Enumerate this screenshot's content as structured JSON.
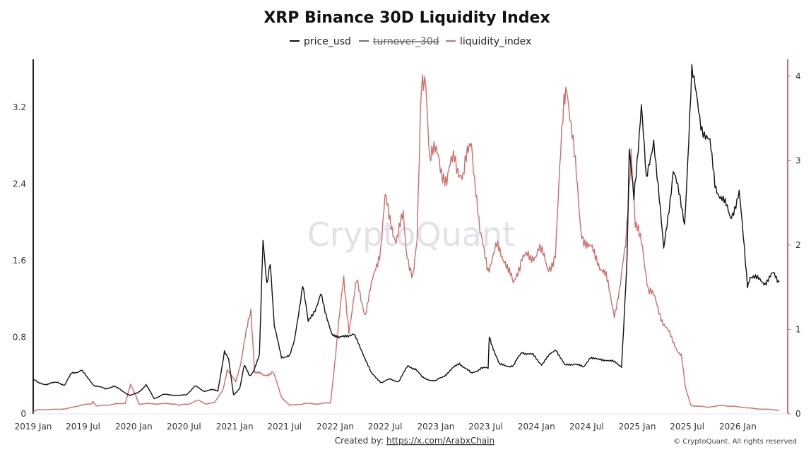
{
  "footer": {
    "created_by_label": "Created by:",
    "created_by_link": "https://x.com/ArabxChain",
    "copyright": "© CryptoQuant. All rights reserved"
  },
  "watermark": "CryptoQuant",
  "colors": {
    "price": "#111111",
    "turnover": "#6f6f6f",
    "liquidity": "#cc6e6a"
  },
  "chart_data": {
    "type": "line",
    "title": "XRP Binance 30D Liquidity Index",
    "legend_position": "top-center",
    "grid": false,
    "x_ticks": [
      "2019 Jan",
      "2019 Jul",
      "2020 Jan",
      "2020 Jul",
      "2021 Jan",
      "2021 Jul",
      "2022 Jan",
      "2022 Jul",
      "2023 Jan",
      "2023 Jul",
      "2024 Jan",
      "2024 Jul",
      "2025 Jan",
      "2025 Jul",
      "2026 Jan"
    ],
    "x_range": [
      "2019-01-01",
      "2026-07-01"
    ],
    "y_left": {
      "ticks": [
        "0",
        "0.8",
        "1.6",
        "2.4",
        "3.2"
      ],
      "min": 0,
      "max": 3.7
    },
    "y_right": {
      "ticks": [
        "0",
        "1",
        "2",
        "3",
        "4"
      ],
      "min": 0,
      "max": 4.2
    },
    "series": [
      {
        "name": "price_usd",
        "axis": "left",
        "points": [
          [
            "2019-01-01",
            0.36
          ],
          [
            "2019-01-20",
            0.32
          ],
          [
            "2019-02-20",
            0.31
          ],
          [
            "2019-04-01",
            0.33
          ],
          [
            "2019-04-25",
            0.3
          ],
          [
            "2019-05-20",
            0.42
          ],
          [
            "2019-06-10",
            0.44
          ],
          [
            "2019-06-25",
            0.46
          ],
          [
            "2019-07-15",
            0.38
          ],
          [
            "2019-08-10",
            0.3
          ],
          [
            "2019-09-20",
            0.26
          ],
          [
            "2019-10-20",
            0.29
          ],
          [
            "2019-11-20",
            0.24
          ],
          [
            "2019-12-20",
            0.19
          ],
          [
            "2020-01-15",
            0.22
          ],
          [
            "2020-02-15",
            0.3
          ],
          [
            "2020-03-15",
            0.16
          ],
          [
            "2020-04-15",
            0.2
          ],
          [
            "2020-05-15",
            0.2
          ],
          [
            "2020-06-15",
            0.19
          ],
          [
            "2020-07-10",
            0.2
          ],
          [
            "2020-08-10",
            0.29
          ],
          [
            "2020-09-10",
            0.24
          ],
          [
            "2020-10-10",
            0.25
          ],
          [
            "2020-11-01",
            0.24
          ],
          [
            "2020-11-25",
            0.65
          ],
          [
            "2020-12-10",
            0.56
          ],
          [
            "2020-12-28",
            0.2
          ],
          [
            "2021-01-20",
            0.27
          ],
          [
            "2021-02-05",
            0.5
          ],
          [
            "2021-02-25",
            0.4
          ],
          [
            "2021-03-10",
            0.45
          ],
          [
            "2021-04-01",
            0.6
          ],
          [
            "2021-04-14",
            1.8
          ],
          [
            "2021-04-28",
            1.38
          ],
          [
            "2021-05-10",
            1.6
          ],
          [
            "2021-05-25",
            0.9
          ],
          [
            "2021-06-20",
            0.6
          ],
          [
            "2021-07-20",
            0.6
          ],
          [
            "2021-08-05",
            0.75
          ],
          [
            "2021-09-05",
            1.35
          ],
          [
            "2021-09-25",
            0.95
          ],
          [
            "2021-10-20",
            1.1
          ],
          [
            "2021-11-10",
            1.25
          ],
          [
            "2021-11-25",
            1.05
          ],
          [
            "2021-12-20",
            0.85
          ],
          [
            "2022-01-15",
            0.78
          ],
          [
            "2022-02-10",
            0.83
          ],
          [
            "2022-03-10",
            0.82
          ],
          [
            "2022-04-10",
            0.65
          ],
          [
            "2022-05-12",
            0.42
          ],
          [
            "2022-06-18",
            0.33
          ],
          [
            "2022-07-20",
            0.36
          ],
          [
            "2022-08-20",
            0.34
          ],
          [
            "2022-09-22",
            0.5
          ],
          [
            "2022-10-20",
            0.47
          ],
          [
            "2022-11-12",
            0.38
          ],
          [
            "2022-12-31",
            0.34
          ],
          [
            "2023-02-01",
            0.4
          ],
          [
            "2023-03-28",
            0.53
          ],
          [
            "2023-05-10",
            0.42
          ],
          [
            "2023-06-15",
            0.48
          ],
          [
            "2023-07-10",
            0.47
          ],
          [
            "2023-07-14",
            0.81
          ],
          [
            "2023-08-05",
            0.63
          ],
          [
            "2023-08-20",
            0.51
          ],
          [
            "2023-10-10",
            0.5
          ],
          [
            "2023-11-10",
            0.65
          ],
          [
            "2023-12-20",
            0.61
          ],
          [
            "2024-01-20",
            0.52
          ],
          [
            "2024-03-12",
            0.68
          ],
          [
            "2024-04-14",
            0.5
          ],
          [
            "2024-05-20",
            0.53
          ],
          [
            "2024-06-20",
            0.48
          ],
          [
            "2024-07-15",
            0.6
          ],
          [
            "2024-08-10",
            0.56
          ],
          [
            "2024-09-10",
            0.57
          ],
          [
            "2024-10-15",
            0.53
          ],
          [
            "2024-11-05",
            0.5
          ],
          [
            "2024-11-16",
            1.1
          ],
          [
            "2024-11-25",
            1.6
          ],
          [
            "2024-12-03",
            2.7
          ],
          [
            "2024-12-20",
            2.25
          ],
          [
            "2025-01-16",
            3.25
          ],
          [
            "2025-02-03",
            2.4
          ],
          [
            "2025-03-02",
            2.9
          ],
          [
            "2025-04-07",
            1.7
          ],
          [
            "2025-05-12",
            2.55
          ],
          [
            "2025-06-22",
            2.0
          ],
          [
            "2025-07-18",
            3.55
          ],
          [
            "2025-08-20",
            3.05
          ],
          [
            "2025-09-22",
            2.8
          ],
          [
            "2025-10-10",
            2.4
          ],
          [
            "2025-11-05",
            2.25
          ],
          [
            "2025-12-05",
            2.05
          ],
          [
            "2026-01-06",
            2.3
          ],
          [
            "2026-02-05",
            1.35
          ],
          [
            "2026-02-15",
            1.45
          ],
          [
            "2026-03-10",
            1.4
          ],
          [
            "2026-04-10",
            1.38
          ],
          [
            "2026-05-10",
            1.45
          ],
          [
            "2026-06-01",
            1.38
          ]
        ]
      },
      {
        "name": "turnover_30d",
        "axis": "right",
        "hidden": true,
        "points": []
      },
      {
        "name": "liquidity_index",
        "axis": "right",
        "points": [
          [
            "2019-01-01",
            0.02
          ],
          [
            "2019-01-15",
            0.05
          ],
          [
            "2019-03-01",
            0.05
          ],
          [
            "2019-05-01",
            0.06
          ],
          [
            "2019-06-20",
            0.1
          ],
          [
            "2019-08-01",
            0.12
          ],
          [
            "2019-08-05",
            0.15
          ],
          [
            "2019-08-20",
            0.09
          ],
          [
            "2019-09-10",
            0.1
          ],
          [
            "2019-10-10",
            0.11
          ],
          [
            "2019-11-10",
            0.12
          ],
          [
            "2019-12-01",
            0.13
          ],
          [
            "2019-12-20",
            0.34
          ],
          [
            "2020-01-10",
            0.2
          ],
          [
            "2020-01-20",
            0.12
          ],
          [
            "2020-03-20",
            0.12
          ],
          [
            "2020-06-01",
            0.12
          ],
          [
            "2020-06-10",
            0.1
          ],
          [
            "2020-07-20",
            0.12
          ],
          [
            "2020-08-20",
            0.16
          ],
          [
            "2020-09-20",
            0.12
          ],
          [
            "2020-10-20",
            0.13
          ],
          [
            "2020-11-20",
            0.3
          ],
          [
            "2020-12-05",
            0.5
          ],
          [
            "2020-12-20",
            0.45
          ],
          [
            "2021-01-05",
            0.4
          ],
          [
            "2021-01-25",
            0.62
          ],
          [
            "2021-02-20",
            1.1
          ],
          [
            "2021-03-01",
            1.25
          ],
          [
            "2021-03-15",
            0.5
          ],
          [
            "2021-04-15",
            0.45
          ],
          [
            "2021-05-20",
            0.5
          ],
          [
            "2021-06-20",
            0.2
          ],
          [
            "2021-07-20",
            0.1
          ],
          [
            "2021-09-10",
            0.12
          ],
          [
            "2021-11-01",
            0.12
          ],
          [
            "2021-12-15",
            0.13
          ],
          [
            "2022-01-10",
            0.95
          ],
          [
            "2022-02-01",
            1.6
          ],
          [
            "2022-02-20",
            1.0
          ],
          [
            "2022-03-20",
            1.55
          ],
          [
            "2022-04-20",
            1.2
          ],
          [
            "2022-05-20",
            1.6
          ],
          [
            "2022-06-15",
            2.0
          ],
          [
            "2022-07-01",
            2.55
          ],
          [
            "2022-07-15",
            2.3
          ],
          [
            "2022-08-10",
            2.1
          ],
          [
            "2022-09-05",
            2.3
          ],
          [
            "2022-09-15",
            1.95
          ],
          [
            "2022-10-10",
            1.65
          ],
          [
            "2022-10-25",
            2.0
          ],
          [
            "2022-11-10",
            3.9
          ],
          [
            "2022-11-25",
            4.1
          ],
          [
            "2022-12-10",
            3.0
          ],
          [
            "2023-01-10",
            3.1
          ],
          [
            "2023-02-10",
            2.7
          ],
          [
            "2023-03-10",
            3.1
          ],
          [
            "2023-04-10",
            2.75
          ],
          [
            "2023-05-10",
            3.3
          ],
          [
            "2023-06-10",
            2.1
          ],
          [
            "2023-07-10",
            1.75
          ],
          [
            "2023-08-10",
            1.95
          ],
          [
            "2023-09-10",
            1.85
          ],
          [
            "2023-10-10",
            1.5
          ],
          [
            "2023-11-10",
            1.9
          ],
          [
            "2023-12-10",
            1.8
          ],
          [
            "2024-01-10",
            2.0
          ],
          [
            "2024-02-10",
            1.7
          ],
          [
            "2024-03-10",
            1.9
          ],
          [
            "2024-04-10",
            3.7
          ],
          [
            "2024-04-20",
            4.0
          ],
          [
            "2024-05-10",
            3.3
          ],
          [
            "2024-06-10",
            2.2
          ],
          [
            "2024-07-10",
            1.95
          ],
          [
            "2024-08-10",
            1.85
          ],
          [
            "2024-09-10",
            1.6
          ],
          [
            "2024-10-10",
            1.2
          ],
          [
            "2024-11-01",
            1.5
          ],
          [
            "2024-11-20",
            2.0
          ],
          [
            "2024-12-10",
            3.2
          ],
          [
            "2024-12-25",
            2.2
          ],
          [
            "2025-01-20",
            2.0
          ],
          [
            "2025-02-10",
            1.5
          ],
          [
            "2025-03-05",
            1.35
          ],
          [
            "2025-04-05",
            1.1
          ],
          [
            "2025-05-10",
            0.85
          ],
          [
            "2025-06-10",
            0.7
          ],
          [
            "2025-06-25",
            0.3
          ],
          [
            "2025-07-15",
            0.1
          ],
          [
            "2025-09-10",
            0.08
          ],
          [
            "2025-11-10",
            0.1
          ],
          [
            "2026-01-10",
            0.08
          ],
          [
            "2026-03-10",
            0.06
          ],
          [
            "2026-05-10",
            0.05
          ],
          [
            "2026-06-01",
            0.04
          ]
        ]
      }
    ]
  }
}
